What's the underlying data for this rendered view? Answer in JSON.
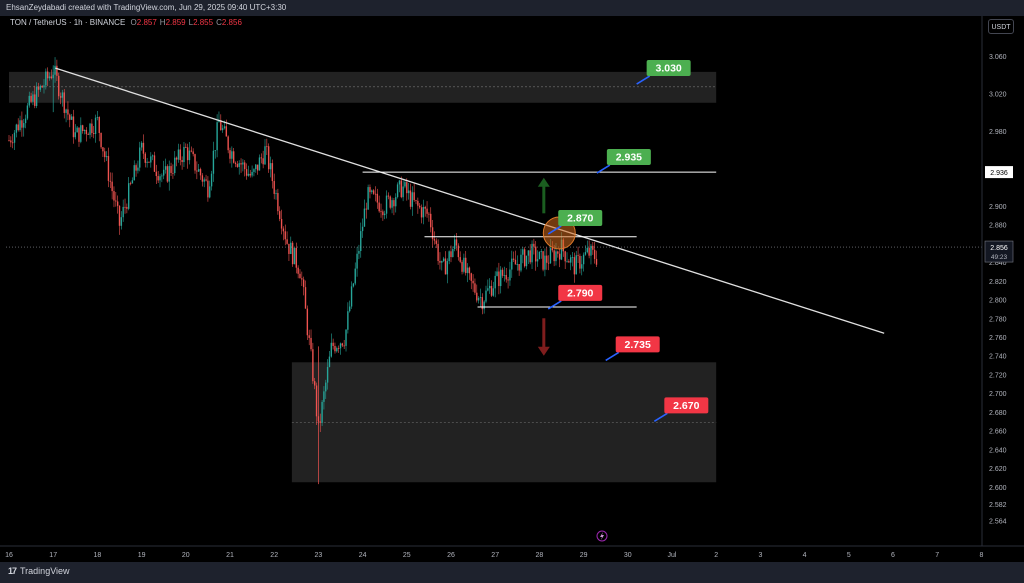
{
  "header": {
    "credit": "EhsanZeydabadi created with TradingView.com, Jun 29, 2025 09:40 UTC+3:30"
  },
  "legend": {
    "symbol": "TON / TetherUS · 1h · BINANCE",
    "ohlc": [
      {
        "k": "O",
        "v": "2.857"
      },
      {
        "k": "H",
        "v": "2.859"
      },
      {
        "k": "L",
        "v": "2.855"
      },
      {
        "k": "C",
        "v": "2.856"
      }
    ]
  },
  "currency_button": "USDT",
  "footer": {
    "brand": "TradingView"
  },
  "colors": {
    "up": "#26a69a",
    "down": "#ef5350",
    "green_label": "#4caf50",
    "red_label": "#f23645",
    "zone": "#2a2a2a",
    "arrow_up": "#1b5e20",
    "arrow_down": "#7f1d1d",
    "circle": "#d2691e"
  },
  "chart_data": {
    "type": "candlestick",
    "symbol": "TON/USDT",
    "timeframe": "1h",
    "ylim": [
      2.554,
      3.077
    ],
    "x_ticks": [
      "16",
      "17",
      "18",
      "19",
      "20",
      "21",
      "22",
      "23",
      "24",
      "25",
      "26",
      "27",
      "28",
      "29",
      "30",
      "Jul",
      "2",
      "3",
      "4",
      "5",
      "6",
      "7",
      "8"
    ],
    "y_ticks": [
      "3.060",
      "3.020",
      "2.980",
      "2.940",
      "2.900",
      "2.880",
      "2.860",
      "2.840",
      "2.820",
      "2.800",
      "2.780",
      "2.760",
      "2.740",
      "2.720",
      "2.700",
      "2.680",
      "2.660",
      "2.640",
      "2.620",
      "2.600",
      "2.582",
      "2.564"
    ],
    "price_tag": {
      "value": "2.856",
      "countdown": "49:23",
      "price": 2.856
    },
    "level_tag": {
      "value": "2.936",
      "price": 2.936
    },
    "close_series_by_day": [
      {
        "day": 16,
        "close": 2.97
      },
      {
        "day": 16.5,
        "close": 3.01
      },
      {
        "day": 17,
        "close": 3.045
      },
      {
        "day": 17.5,
        "close": 2.975
      },
      {
        "day": 18,
        "close": 2.99
      },
      {
        "day": 18.5,
        "close": 2.88
      },
      {
        "day": 19,
        "close": 2.96
      },
      {
        "day": 19.5,
        "close": 2.93
      },
      {
        "day": 20,
        "close": 2.96
      },
      {
        "day": 20.5,
        "close": 2.92
      },
      {
        "day": 20.75,
        "close": 2.99
      },
      {
        "day": 21,
        "close": 2.96
      },
      {
        "day": 21.5,
        "close": 2.93
      },
      {
        "day": 21.8,
        "close": 2.96
      },
      {
        "day": 22,
        "close": 2.92
      },
      {
        "day": 22.3,
        "close": 2.86
      },
      {
        "day": 22.6,
        "close": 2.83
      },
      {
        "day": 22.9,
        "close": 2.71
      },
      {
        "day": 23,
        "close": 2.66
      },
      {
        "day": 23.3,
        "close": 2.75
      },
      {
        "day": 23.6,
        "close": 2.76
      },
      {
        "day": 23.9,
        "close": 2.85
      },
      {
        "day": 24.1,
        "close": 2.91
      },
      {
        "day": 24.5,
        "close": 2.9
      },
      {
        "day": 24.9,
        "close": 2.92
      },
      {
        "day": 25.2,
        "close": 2.9
      },
      {
        "day": 25.5,
        "close": 2.89
      },
      {
        "day": 25.8,
        "close": 2.83
      },
      {
        "day": 26.1,
        "close": 2.86
      },
      {
        "day": 26.4,
        "close": 2.82
      },
      {
        "day": 26.7,
        "close": 2.8
      },
      {
        "day": 27,
        "close": 2.82
      },
      {
        "day": 27.4,
        "close": 2.835
      },
      {
        "day": 27.8,
        "close": 2.85
      },
      {
        "day": 28.1,
        "close": 2.84
      },
      {
        "day": 28.5,
        "close": 2.855
      },
      {
        "day": 28.8,
        "close": 2.835
      },
      {
        "day": 29.1,
        "close": 2.85
      },
      {
        "day": 29.3,
        "close": 2.845
      }
    ],
    "zones": [
      {
        "name": "supply-zone",
        "from_day": 16,
        "to_day": 32,
        "low": 3.01,
        "high": 3.043,
        "mid": 3.027
      },
      {
        "name": "demand-zone",
        "from_day": 22.4,
        "to_day": 32,
        "low": 2.605,
        "high": 2.733,
        "mid": 2.669
      }
    ],
    "trendline": {
      "from": {
        "day": 17.05,
        "price": 3.047
      },
      "to": {
        "day": 35.8,
        "price": 2.764
      }
    },
    "horizontal_lines": [
      {
        "price": 2.936,
        "from_day": 24,
        "to_day": 32
      },
      {
        "price": 2.867,
        "from_day": 25.4,
        "to_day": 30.2
      },
      {
        "price": 2.792,
        "from_day": 26.6,
        "to_day": 30.2
      }
    ],
    "target_labels": [
      {
        "text": "3.030",
        "kind": "up",
        "price": 3.03,
        "day": 30.2
      },
      {
        "text": "2.935",
        "kind": "up",
        "price": 2.935,
        "day": 29.3
      },
      {
        "text": "2.870",
        "kind": "up",
        "price": 2.87,
        "day": 28.2
      },
      {
        "text": "2.790",
        "kind": "down",
        "price": 2.79,
        "day": 28.2
      },
      {
        "text": "2.735",
        "kind": "down",
        "price": 2.735,
        "day": 29.5
      },
      {
        "text": "2.670",
        "kind": "down",
        "price": 2.67,
        "day": 30.6
      }
    ],
    "arrows": [
      {
        "dir": "up",
        "day": 28.1,
        "price_from": 2.892,
        "price_to": 2.93
      },
      {
        "dir": "down",
        "day": 28.1,
        "price_from": 2.78,
        "price_to": 2.74
      }
    ],
    "highlight_circle": {
      "day": 28.45,
      "price": 2.871
    }
  }
}
